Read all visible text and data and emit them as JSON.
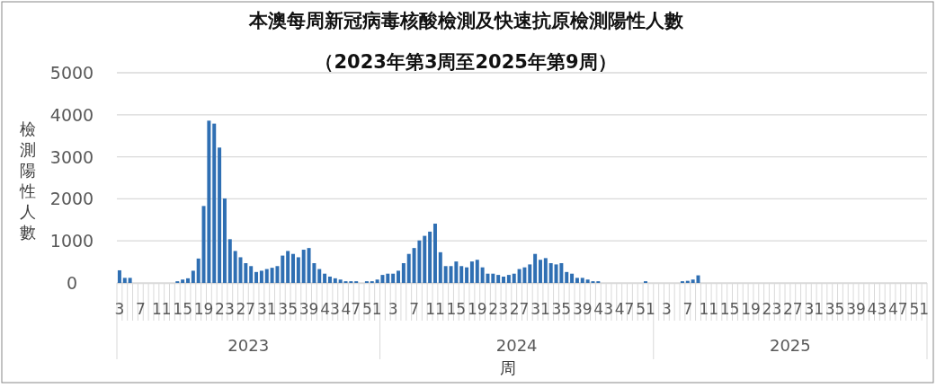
{
  "chart_data": {
    "type": "bar",
    "title": "本澳每周新冠病毒核酸檢測及快速抗原檢測陽性人數",
    "subtitle": "（2023年第3周至2025年第9周）",
    "xlabel": "周",
    "ylabel": "檢測陽性人數",
    "color": "#2f6fb3",
    "ylim": [
      0,
      5000
    ],
    "yticks": [
      0,
      1000,
      2000,
      3000,
      4000,
      5000
    ],
    "grid": "y",
    "annotations": [
      "2023",
      "2024",
      "2025"
    ],
    "categories": [
      "3",
      null,
      null,
      null,
      "7",
      null,
      null,
      null,
      "11",
      null,
      null,
      null,
      "15",
      null,
      null,
      null,
      "19",
      null,
      null,
      null,
      "23",
      null,
      null,
      null,
      "27",
      null,
      null,
      null,
      "31",
      null,
      null,
      null,
      "35",
      null,
      null,
      null,
      "39",
      null,
      null,
      null,
      "43",
      null,
      null,
      null,
      "47",
      null,
      null,
      null,
      "51",
      null,
      null,
      null,
      "3",
      null,
      null,
      null,
      "7",
      null,
      null,
      null,
      "11",
      null,
      null,
      null,
      "15",
      null,
      null,
      null,
      "19",
      null,
      null,
      null,
      "23",
      null,
      null,
      null,
      "27",
      null,
      null,
      null,
      "31",
      null,
      null,
      null,
      "35",
      null,
      null,
      null,
      "39",
      null,
      null,
      null,
      "43",
      null,
      null,
      null,
      "47",
      null,
      null,
      null,
      "51",
      null,
      null,
      null,
      "3",
      null,
      null,
      null,
      "7",
      null,
      null,
      null,
      "11",
      null,
      null,
      null,
      "15",
      null,
      null,
      null,
      "19",
      null,
      null,
      null,
      "23",
      null,
      null,
      null,
      "27",
      null,
      null,
      null,
      "31",
      null,
      null,
      null,
      "35",
      null,
      null,
      null,
      "39",
      null,
      null,
      null,
      "43",
      null,
      null,
      null,
      "47",
      null,
      null,
      null,
      "51",
      null
    ],
    "values": [
      300,
      120,
      120,
      0,
      0,
      0,
      0,
      0,
      0,
      0,
      0,
      40,
      80,
      110,
      290,
      580,
      1830,
      3860,
      3790,
      3220,
      2010,
      1040,
      760,
      610,
      470,
      400,
      260,
      290,
      330,
      360,
      400,
      650,
      760,
      690,
      610,
      790,
      830,
      470,
      330,
      220,
      150,
      110,
      80,
      40,
      40,
      40,
      0,
      40,
      40,
      80,
      190,
      220,
      220,
      290,
      470,
      690,
      830,
      1010,
      1120,
      1220,
      1410,
      730,
      400,
      400,
      510,
      400,
      370,
      510,
      550,
      370,
      220,
      220,
      190,
      150,
      190,
      220,
      330,
      370,
      440,
      690,
      550,
      590,
      470,
      440,
      470,
      260,
      220,
      120,
      120,
      80,
      40,
      40,
      0,
      0,
      0,
      0,
      0,
      0,
      0,
      0,
      40,
      0,
      0,
      0,
      0,
      0,
      0,
      40,
      50,
      80,
      180,
      null,
      null,
      null,
      null,
      null,
      null,
      null,
      null,
      null,
      null,
      null,
      null,
      null,
      null,
      null,
      null,
      null,
      null,
      null,
      null,
      null,
      null,
      null,
      null,
      null,
      null,
      null,
      null,
      null,
      null,
      null,
      null,
      null,
      null,
      null,
      null,
      null,
      null,
      null,
      null,
      null,
      null,
      null
    ]
  }
}
